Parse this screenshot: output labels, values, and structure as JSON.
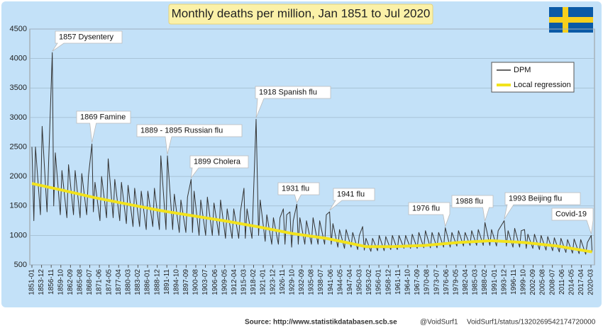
{
  "chart_data": {
    "type": "line",
    "title": "Monthly deaths per million, Jan 1851 to Jul 2020",
    "source": "Source: http://www.statistikdatabasen.scb.se",
    "credits": [
      "@VoidSurf1",
      "VoidSurf1/status/1320269542174720000"
    ],
    "ylim": [
      500,
      4500
    ],
    "yticks": [
      500,
      1000,
      1500,
      2000,
      2500,
      3000,
      3500,
      4000,
      4500
    ],
    "xticks": [
      "1851-01",
      "1853-12",
      "1856-11",
      "1859-10",
      "1862-09",
      "1865-08",
      "1868-07",
      "1871-06",
      "1874-05",
      "1877-04",
      "1880-03",
      "1883-02",
      "1886-01",
      "1888-12",
      "1891-11",
      "1894-10",
      "1897-09",
      "1900-08",
      "1903-07",
      "1906-06",
      "1909-05",
      "1912-04",
      "1915-03",
      "1918-02",
      "1921-01",
      "1923-12",
      "1926-11",
      "1929-10",
      "1932-09",
      "1935-08",
      "1938-07",
      "1941-06",
      "1944-05",
      "1947-04",
      "1950-03",
      "1953-02",
      "1956-01",
      "1958-12",
      "1961-11",
      "1964-10",
      "1967-09",
      "1970-08",
      "1973-07",
      "1976-06",
      "1979-05",
      "1982-04",
      "1985-03",
      "1988-02",
      "1991-01",
      "1993-12",
      "1996-11",
      "1999-10",
      "2002-09",
      "2005-08",
      "2008-07",
      "2011-06",
      "2014-05",
      "2017-04",
      "2020-03"
    ],
    "legend": "top-right",
    "series": [
      {
        "name": "DPM",
        "color": "#333333",
        "x": [
          "1851-01",
          "1851-08",
          "1852-02",
          "1853-08",
          "1854-02",
          "1855-08",
          "1856-02",
          "1857-03",
          "1857-08",
          "1858-02",
          "1859-08",
          "1860-02",
          "1861-08",
          "1862-02",
          "1863-08",
          "1864-02",
          "1865-08",
          "1866-02",
          "1867-08",
          "1868-02",
          "1869-03",
          "1869-08",
          "1870-02",
          "1871-08",
          "1872-02",
          "1873-08",
          "1874-02",
          "1875-08",
          "1876-02",
          "1877-08",
          "1878-02",
          "1879-08",
          "1880-02",
          "1881-08",
          "1882-02",
          "1883-08",
          "1884-02",
          "1885-08",
          "1886-02",
          "1887-08",
          "1888-02",
          "1889-08",
          "1890-01",
          "1891-08",
          "1892-01",
          "1893-08",
          "1894-02",
          "1895-08",
          "1896-02",
          "1897-08",
          "1898-02",
          "1899-03",
          "1899-08",
          "1900-02",
          "1901-08",
          "1902-02",
          "1903-08",
          "1904-02",
          "1905-08",
          "1906-02",
          "1907-08",
          "1908-02",
          "1909-08",
          "1910-02",
          "1911-08",
          "1912-02",
          "1913-08",
          "1914-02",
          "1915-03",
          "1915-08",
          "1916-02",
          "1917-08",
          "1918-11",
          "1919-08",
          "1920-02",
          "1921-08",
          "1922-02",
          "1923-08",
          "1924-02",
          "1925-08",
          "1926-02",
          "1927-02",
          "1927-08",
          "1928-02",
          "1929-02",
          "1929-08",
          "1930-02",
          "1931-03",
          "1931-08",
          "1932-02",
          "1933-08",
          "1934-02",
          "1935-08",
          "1936-02",
          "1937-08",
          "1938-02",
          "1939-08",
          "1940-02",
          "1941-02",
          "1941-08",
          "1942-02",
          "1943-08",
          "1944-02",
          "1945-08",
          "1946-02",
          "1947-08",
          "1948-02",
          "1949-08",
          "1950-02",
          "1951-02",
          "1951-08",
          "1952-02",
          "1953-08",
          "1954-02",
          "1955-08",
          "1956-02",
          "1957-08",
          "1958-02",
          "1959-08",
          "1960-02",
          "1961-08",
          "1962-02",
          "1963-08",
          "1964-02",
          "1965-08",
          "1966-02",
          "1967-08",
          "1968-02",
          "1969-08",
          "1970-02",
          "1971-08",
          "1972-02",
          "1973-08",
          "1974-02",
          "1975-08",
          "1976-02",
          "1977-08",
          "1978-02",
          "1979-08",
          "1980-02",
          "1981-08",
          "1982-02",
          "1983-08",
          "1984-02",
          "1985-08",
          "1986-02",
          "1987-08",
          "1988-02",
          "1989-08",
          "1990-02",
          "1991-08",
          "1992-02",
          "1993-12",
          "1994-08",
          "1995-02",
          "1996-08",
          "1997-02",
          "1998-08",
          "1999-02",
          "2000-02",
          "2000-08",
          "2001-02",
          "2002-08",
          "2003-02",
          "2004-08",
          "2005-02",
          "2006-08",
          "2007-02",
          "2008-08",
          "2009-02",
          "2010-08",
          "2011-02",
          "2012-08",
          "2013-02",
          "2014-08",
          "2015-02",
          "2016-08",
          "2017-02",
          "2018-08",
          "2019-02",
          "2020-04",
          "2020-07"
        ],
        "values": [
          2500,
          1250,
          2500,
          1350,
          2850,
          1400,
          2300,
          4100,
          1500,
          2400,
          1350,
          2100,
          1300,
          2200,
          1350,
          2100,
          1300,
          2050,
          1350,
          2000,
          2550,
          1400,
          1900,
          1250,
          2000,
          1300,
          2300,
          1300,
          1950,
          1250,
          1900,
          1200,
          1850,
          1150,
          1800,
          1150,
          1750,
          1100,
          1750,
          1150,
          1800,
          1100,
          2350,
          1100,
          2350,
          1100,
          1700,
          1050,
          1600,
          1050,
          1650,
          1950,
          1050,
          1750,
          1000,
          1600,
          1000,
          1650,
          1000,
          1550,
          1000,
          1600,
          950,
          1450,
          950,
          1450,
          950,
          1400,
          1800,
          950,
          1450,
          950,
          2970,
          1000,
          1600,
          900,
          1350,
          850,
          1300,
          850,
          1300,
          1450,
          850,
          1350,
          1400,
          800,
          1250,
          1530,
          850,
          1300,
          850,
          1250,
          850,
          1300,
          850,
          1250,
          850,
          1350,
          1400,
          850,
          1200,
          800,
          1100,
          780,
          1100,
          800,
          1050,
          760,
          1000,
          1150,
          750,
          950,
          730,
          950,
          740,
          1000,
          740,
          980,
          760,
          1000,
          760,
          1000,
          780,
          1000,
          780,
          1020,
          780,
          1050,
          790,
          1080,
          790,
          1050,
          790,
          1050,
          800,
          1130,
          800,
          1050,
          820,
          1080,
          820,
          1050,
          830,
          1080,
          830,
          1100,
          830,
          1220,
          830,
          1100,
          820,
          1080,
          1250,
          820,
          1080,
          800,
          1120,
          800,
          1080,
          1100,
          780,
          1020,
          780,
          1020,
          760,
          1000,
          750,
          980,
          740,
          960,
          720,
          950,
          710,
          930,
          700,
          940,
          690,
          930,
          680,
          880,
          1000,
          720
        ]
      },
      {
        "name": "Local regression",
        "color": "#f2e21c",
        "x": [
          "1851-01",
          "1860-01",
          "1870-01",
          "1880-01",
          "1890-01",
          "1900-01",
          "1910-01",
          "1920-01",
          "1930-01",
          "1940-01",
          "1947-01",
          "1952-01",
          "1960-01",
          "1970-01",
          "1980-01",
          "1990-01",
          "2000-01",
          "2010-01",
          "2020-07"
        ],
        "values": [
          1880,
          1770,
          1640,
          1530,
          1420,
          1330,
          1240,
          1140,
          1030,
          950,
          870,
          810,
          810,
          830,
          880,
          910,
          880,
          820,
          720
        ]
      }
    ],
    "annotations": [
      {
        "text": "1857 Dysentery",
        "x": "1857-03"
      },
      {
        "text": "1869 Famine",
        "x": "1869-03"
      },
      {
        "text": "1889 - 1895 Russian flu",
        "x": "1892-01"
      },
      {
        "text": "1899 Cholera",
        "x": "1899-03"
      },
      {
        "text": "1918 Spanish flu",
        "x": "1918-11"
      },
      {
        "text": "1931 flu",
        "x": "1931-03"
      },
      {
        "text": "1941 flu",
        "x": "1941-02"
      },
      {
        "text": "1976 flu",
        "x": "1976-02"
      },
      {
        "text": "1988 flu",
        "x": "1988-02"
      },
      {
        "text": "1993 Beijing flu",
        "x": "1993-12"
      },
      {
        "text": "Covid-19",
        "x": "2020-04"
      }
    ]
  }
}
